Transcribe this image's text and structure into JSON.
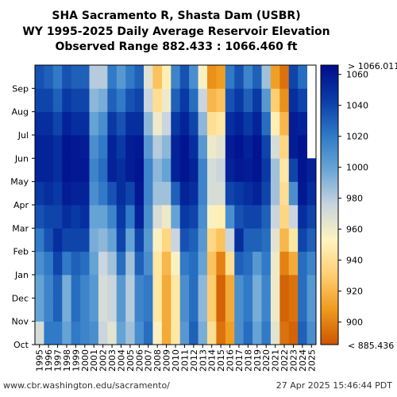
{
  "title": {
    "line1": "SHA Sacramento R, Shasta Dam (USBR)",
    "line2": "WY 1995-2025 Daily Average Reservoir Elevation",
    "line3": "Observed Range 882.433 : 1066.460 ft"
  },
  "footer": {
    "source": "www.cbr.washington.edu/sacramento/",
    "timestamp": "27 Apr 2025 15:46:44 PDT"
  },
  "chart_data": {
    "type": "heatmap",
    "title": "SHA Sacramento R, Shasta Dam (USBR) WY 1995-2025 Daily Average Reservoir Elevation",
    "xlabel": "",
    "ylabel": "",
    "x_categories": [
      "1995",
      "1996",
      "1997",
      "1998",
      "1999",
      "2000",
      "2001",
      "2002",
      "2003",
      "2004",
      "2005",
      "2006",
      "2007",
      "2008",
      "2009",
      "2010",
      "2011",
      "2012",
      "2013",
      "2014",
      "2015",
      "2016",
      "2017",
      "2018",
      "2019",
      "2020",
      "2021",
      "2022",
      "2023",
      "2024",
      "2025"
    ],
    "y_months": [
      "Oct",
      "Nov",
      "Dec",
      "Jan",
      "Feb",
      "Mar",
      "Apr",
      "May",
      "Jun",
      "Jul",
      "Aug",
      "Sep"
    ],
    "value_unit": "ft",
    "observed_range": [
      882.433,
      1066.46
    ],
    "colorbar": {
      "min": 885.436,
      "max": 1066.011,
      "min_label": "< 885.436",
      "max_label": "> 1066.011",
      "ticks": [
        900,
        920,
        940,
        960,
        980,
        1000,
        1020,
        1040,
        1060
      ],
      "stops": [
        "#cc5500",
        "#ef9a1e",
        "#ffcf72",
        "#fff4c0",
        "#c8d4de",
        "#6aa6d6",
        "#2e78c6",
        "#0a3ca6",
        "#000c8c"
      ]
    },
    "series": [
      {
        "name": "1995",
        "values": [
          970,
          1000,
          1000,
          1010,
          1020,
          1035,
          1045,
          1055,
          1055,
          1050,
          1040,
          1035
        ]
      },
      {
        "name": "1996",
        "values": [
          1020,
          1015,
          1015,
          1020,
          1035,
          1040,
          1050,
          1055,
          1055,
          1050,
          1040,
          1030
        ]
      },
      {
        "name": "1997",
        "values": [
          1020,
          1030,
          1030,
          1040,
          1050,
          1040,
          1045,
          1050,
          1050,
          1040,
          1030,
          1020
        ]
      },
      {
        "name": "1998",
        "values": [
          1000,
          995,
          995,
          1020,
          1040,
          1050,
          1058,
          1062,
          1062,
          1055,
          1045,
          1035
        ]
      },
      {
        "name": "1999",
        "values": [
          1020,
          1025,
          1025,
          1030,
          1040,
          1045,
          1055,
          1060,
          1060,
          1050,
          1040,
          1030
        ]
      },
      {
        "name": "2000",
        "values": [
          1015,
          1015,
          1015,
          1025,
          1040,
          1050,
          1055,
          1060,
          1058,
          1050,
          1040,
          1030
        ]
      },
      {
        "name": "2001",
        "values": [
          1010,
          1005,
          1005,
          1000,
          995,
          1000,
          1010,
          1015,
          1010,
          1000,
          990,
          980
        ]
      },
      {
        "name": "2002",
        "values": [
          975,
          970,
          970,
          975,
          990,
          1000,
          1020,
          1025,
          1020,
          1010,
          995,
          980
        ]
      },
      {
        "name": "2003",
        "values": [
          965,
          975,
          975,
          985,
          1000,
          1015,
          1035,
          1055,
          1055,
          1045,
          1030,
          1020
        ]
      },
      {
        "name": "2004",
        "values": [
          1000,
          1005,
          1005,
          1025,
          1040,
          1045,
          1050,
          1050,
          1045,
          1035,
          1020,
          1005
        ]
      },
      {
        "name": "2005",
        "values": [
          985,
          980,
          980,
          985,
          1000,
          1020,
          1040,
          1058,
          1058,
          1050,
          1035,
          1020
        ]
      },
      {
        "name": "2006",
        "values": [
          1010,
          1015,
          1015,
          1030,
          1040,
          1055,
          1060,
          1062,
          1060,
          1050,
          1040,
          1030
        ]
      },
      {
        "name": "2007",
        "values": [
          1025,
          1020,
          1020,
          1010,
          1005,
          1010,
          1015,
          1015,
          1005,
          990,
          975,
          965
        ]
      },
      {
        "name": "2008",
        "values": [
          955,
          945,
          945,
          945,
          955,
          970,
          985,
          990,
          980,
          960,
          940,
          925
        ]
      },
      {
        "name": "2009",
        "values": [
          915,
          915,
          915,
          920,
          935,
          960,
          985,
          1000,
          990,
          975,
          960,
          950
        ]
      },
      {
        "name": "2010",
        "values": [
          945,
          945,
          945,
          955,
          975,
          1000,
          1030,
          1055,
          1055,
          1045,
          1030,
          1015
        ]
      },
      {
        "name": "2011",
        "values": [
          1005,
          1010,
          1010,
          1020,
          1035,
          1045,
          1055,
          1062,
          1062,
          1055,
          1045,
          1035
        ]
      },
      {
        "name": "2012",
        "values": [
          1030,
          1025,
          1025,
          1025,
          1030,
          1040,
          1050,
          1055,
          1050,
          1040,
          1025,
          1010
        ]
      },
      {
        "name": "2013",
        "values": [
          995,
          990,
          990,
          1000,
          1005,
          1010,
          1015,
          1015,
          1005,
          990,
          975,
          955
        ]
      },
      {
        "name": "2014",
        "values": [
          940,
          930,
          930,
          925,
          935,
          955,
          970,
          970,
          960,
          940,
          920,
          905
        ]
      },
      {
        "name": "2015",
        "values": [
          895,
          890,
          890,
          900,
          925,
          950,
          970,
          975,
          965,
          945,
          925,
          910
        ]
      },
      {
        "name": "2016",
        "values": [
          910,
          915,
          915,
          940,
          975,
          1010,
          1040,
          1055,
          1058,
          1050,
          1035,
          1020
        ]
      },
      {
        "name": "2017",
        "values": [
          1010,
          1010,
          1010,
          1030,
          1050,
          1035,
          1045,
          1060,
          1062,
          1055,
          1045,
          1035
        ]
      },
      {
        "name": "2018",
        "values": [
          1025,
          1020,
          1020,
          1025,
          1030,
          1040,
          1050,
          1058,
          1055,
          1045,
          1030,
          1015
        ]
      },
      {
        "name": "2019",
        "values": [
          1000,
          995,
          995,
          1005,
          1030,
          1040,
          1055,
          1062,
          1062,
          1055,
          1045,
          1030
        ]
      },
      {
        "name": "2020",
        "values": [
          1020,
          1015,
          1015,
          1020,
          1025,
          1030,
          1040,
          1045,
          1040,
          1025,
          1005,
          985
        ]
      },
      {
        "name": "2021",
        "values": [
          965,
          960,
          960,
          960,
          965,
          975,
          985,
          985,
          970,
          950,
          930,
          910
        ]
      },
      {
        "name": "2022",
        "values": [
          895,
          890,
          890,
          900,
          920,
          935,
          940,
          945,
          935,
          920,
          905,
          895
        ]
      },
      {
        "name": "2023",
        "values": [
          890,
          895,
          895,
          915,
          945,
          975,
          1010,
          1040,
          1058,
          1058,
          1050,
          1040
        ]
      },
      {
        "name": "2024",
        "values": [
          1030,
          1025,
          1025,
          1025,
          1040,
          1050,
          1060,
          1062,
          1062,
          1055,
          1040,
          1025
        ]
      },
      {
        "name": "2025",
        "values": [
          1010,
          1005,
          1005,
          1015,
          1030,
          1040,
          1050,
          1055,
          null,
          null,
          null,
          null
        ]
      }
    ]
  }
}
